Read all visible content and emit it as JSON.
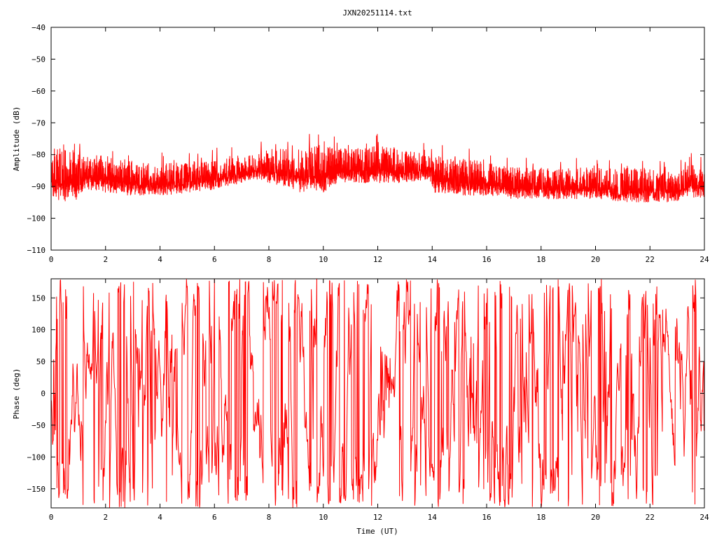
{
  "title": "JXN20251114.txt",
  "colors": {
    "series": "#ff0000",
    "axis": "#000000",
    "background": "#ffffff"
  },
  "chart_data": [
    {
      "type": "line",
      "ylabel": "Amplitude (dB)",
      "xlabel": "",
      "xlim": [
        0,
        24
      ],
      "ylim": [
        -110,
        -40
      ],
      "x_ticks": [
        0,
        2,
        4,
        6,
        8,
        10,
        12,
        14,
        16,
        18,
        20,
        22,
        24
      ],
      "y_ticks": [
        -110,
        -100,
        -90,
        -80,
        -70,
        -60,
        -50,
        -40
      ],
      "grid": false,
      "series": [
        {
          "x": [
            0,
            0.5,
            1,
            1.3,
            2,
            3,
            4,
            5,
            6,
            7,
            7.5,
            8,
            8.5,
            9,
            9.3,
            9.5,
            10,
            10.5,
            11,
            12,
            13,
            13.9,
            14.1,
            15,
            16,
            17,
            18,
            19,
            20,
            21,
            22,
            23,
            23.3,
            23.6,
            24
          ],
          "y_low": [
            -94,
            -95,
            -94,
            -91,
            -92,
            -93,
            -93,
            -92,
            -91,
            -89,
            -88,
            -89,
            -90,
            -91,
            -93,
            -91,
            -92,
            -89,
            -89,
            -89,
            -89,
            -88,
            -92,
            -93,
            -93,
            -94,
            -94,
            -94,
            -94,
            -95,
            -95,
            -95,
            -93,
            -94,
            -94
          ],
          "y_high": [
            -78,
            -78,
            -79,
            -80,
            -80,
            -82,
            -83,
            -82,
            -82,
            -80,
            -80,
            -78,
            -78,
            -79,
            -78,
            -77,
            -77,
            -78,
            -78,
            -77,
            -78,
            -79,
            -80,
            -81,
            -82,
            -84,
            -84,
            -84,
            -84,
            -84,
            -84,
            -86,
            -83,
            -83,
            -85
          ],
          "spike_max": -73.5
        }
      ]
    },
    {
      "type": "line",
      "ylabel": "Phase (deg)",
      "xlabel": "Time (UT)",
      "xlim": [
        0,
        24
      ],
      "ylim": [
        -180,
        180
      ],
      "x_ticks": [
        0,
        2,
        4,
        6,
        8,
        10,
        12,
        14,
        16,
        18,
        20,
        22,
        24
      ],
      "y_ticks": [
        -150,
        -100,
        -50,
        0,
        50,
        100,
        150
      ],
      "grid": false,
      "series": [
        {
          "range": [
            -180,
            180
          ],
          "description_density": "rapid wrapping oscillation across full range"
        }
      ]
    }
  ]
}
